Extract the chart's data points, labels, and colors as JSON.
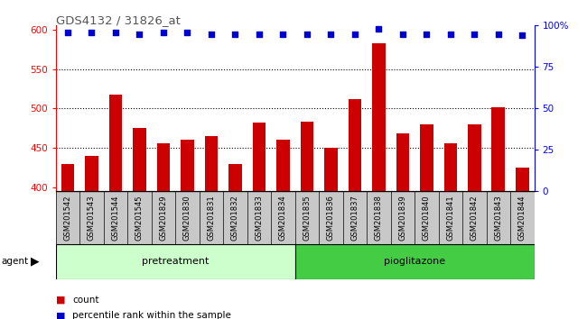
{
  "title": "GDS4132 / 31826_at",
  "categories": [
    "GSM201542",
    "GSM201543",
    "GSM201544",
    "GSM201545",
    "GSM201829",
    "GSM201830",
    "GSM201831",
    "GSM201832",
    "GSM201833",
    "GSM201834",
    "GSM201835",
    "GSM201836",
    "GSM201837",
    "GSM201838",
    "GSM201839",
    "GSM201840",
    "GSM201841",
    "GSM201842",
    "GSM201843",
    "GSM201844"
  ],
  "bar_values": [
    430,
    440,
    517,
    475,
    456,
    460,
    465,
    430,
    482,
    460,
    483,
    450,
    512,
    583,
    469,
    480,
    456,
    480,
    502,
    425
  ],
  "percentile_values": [
    96,
    96,
    96,
    95,
    96,
    96,
    95,
    95,
    95,
    95,
    95,
    95,
    95,
    98,
    95,
    95,
    95,
    95,
    95,
    94
  ],
  "bar_color": "#cc0000",
  "percentile_color": "#0000cc",
  "ylim_left": [
    395,
    605
  ],
  "ylim_right": [
    0,
    100
  ],
  "yticks_left": [
    400,
    450,
    500,
    550,
    600
  ],
  "yticks_right": [
    0,
    25,
    50,
    75,
    100
  ],
  "yticklabels_right": [
    "0",
    "25",
    "50",
    "75",
    "100%"
  ],
  "grid_values": [
    450,
    500,
    550
  ],
  "pretreatment_count": 10,
  "pioglitazone_count": 10,
  "pretreatment_label": "pretreatment",
  "pioglitazone_label": "pioglitazone",
  "agent_label": "agent",
  "legend_count": "count",
  "legend_percentile": "percentile rank within the sample",
  "pretreatment_color": "#ccffcc",
  "pioglitazone_color": "#44cc44",
  "bg_color": "#c8c8c8",
  "title_color": "#555555"
}
